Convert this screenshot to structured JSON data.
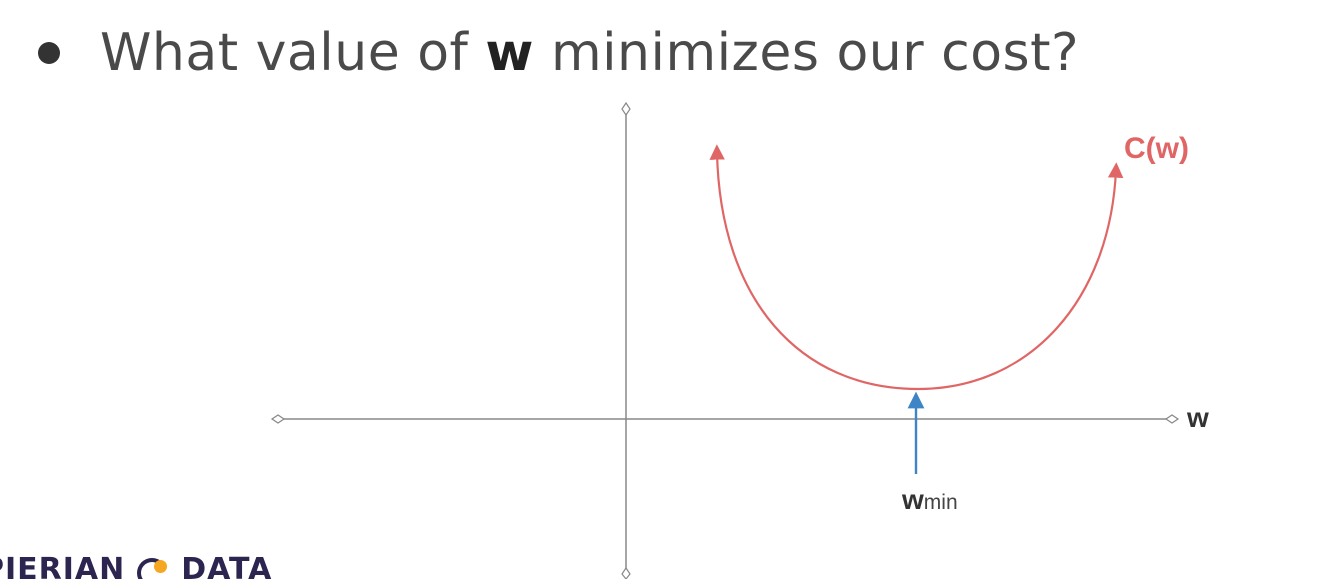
{
  "slide": {
    "bullet_prefix": "What value of ",
    "bullet_bold": "w",
    "bullet_suffix": " minimizes our cost?"
  },
  "diagram": {
    "curve_label": "C(w)",
    "x_axis_label": "w",
    "marker_label_main": "w",
    "marker_label_sub": "min",
    "colors": {
      "curve": "#e06666",
      "axes": "#888888",
      "marker": "#3d85c6",
      "text": "#333333"
    }
  },
  "logo": {
    "text_left": "PIERIAN",
    "text_right": "DATA",
    "colors": {
      "text": "#2b2550",
      "accent": "#f5a623"
    }
  }
}
